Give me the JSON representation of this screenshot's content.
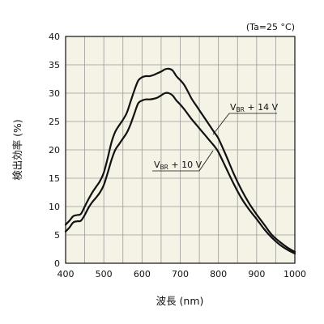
{
  "chart_data": {
    "type": "line",
    "title": "",
    "condition": "(Ta=25 °C)",
    "xlabel": "波長 (nm)",
    "ylabel": "検出効率 (%)",
    "xlim": [
      400,
      1000
    ],
    "ylim": [
      0,
      40
    ],
    "x_ticks": [
      400,
      500,
      600,
      700,
      800,
      900,
      1000
    ],
    "y_ticks": [
      0,
      5,
      10,
      15,
      20,
      25,
      30,
      35,
      40
    ],
    "x_minor_step": 50,
    "grid": true,
    "series": [
      {
        "label_main": "V",
        "label_sub": "BR",
        "label_rest": " + 14 V",
        "x": [
          400,
          410,
          420,
          430,
          440,
          450,
          460,
          470,
          480,
          490,
          500,
          510,
          520,
          530,
          540,
          550,
          560,
          570,
          580,
          590,
          600,
          610,
          620,
          630,
          640,
          650,
          660,
          670,
          680,
          690,
          700,
          710,
          720,
          730,
          740,
          750,
          760,
          770,
          780,
          790,
          800,
          820,
          840,
          860,
          880,
          900,
          920,
          940,
          960,
          980,
          1000
        ],
        "y": [
          6.8,
          7.5,
          8.3,
          8.5,
          8.7,
          10.0,
          11.3,
          12.5,
          13.5,
          14.5,
          16.0,
          18.5,
          21.3,
          23.2,
          24.3,
          25.3,
          26.5,
          28.5,
          30.5,
          32.2,
          32.8,
          33.0,
          33.0,
          33.2,
          33.5,
          33.8,
          34.2,
          34.3,
          34.0,
          33.0,
          32.3,
          31.5,
          30.3,
          29.0,
          28.0,
          27.0,
          26.0,
          25.0,
          24.0,
          23.0,
          22.0,
          19.0,
          15.8,
          13.0,
          10.6,
          8.6,
          6.8,
          5.0,
          3.8,
          2.8,
          2.0
        ]
      },
      {
        "label_main": "V",
        "label_sub": "BR",
        "label_rest": " + 10 V",
        "x": [
          400,
          410,
          420,
          430,
          440,
          450,
          460,
          470,
          480,
          490,
          500,
          510,
          520,
          530,
          540,
          550,
          560,
          570,
          580,
          590,
          600,
          610,
          620,
          630,
          640,
          650,
          660,
          670,
          680,
          690,
          700,
          710,
          720,
          730,
          740,
          750,
          760,
          770,
          780,
          790,
          800,
          820,
          840,
          860,
          880,
          900,
          920,
          940,
          960,
          980,
          1000
        ],
        "y": [
          5.6,
          6.3,
          7.2,
          7.4,
          7.5,
          8.5,
          9.8,
          10.8,
          11.6,
          12.5,
          13.8,
          15.9,
          18.2,
          20.0,
          21.0,
          22.0,
          23.0,
          24.5,
          26.4,
          28.2,
          28.7,
          28.9,
          28.9,
          29.0,
          29.2,
          29.6,
          30.0,
          30.0,
          29.6,
          28.7,
          28.0,
          27.2,
          26.3,
          25.4,
          24.6,
          23.8,
          23.0,
          22.2,
          21.4,
          20.6,
          19.6,
          16.8,
          14.0,
          11.5,
          9.5,
          7.8,
          6.0,
          4.5,
          3.3,
          2.4,
          1.7
        ]
      }
    ]
  }
}
